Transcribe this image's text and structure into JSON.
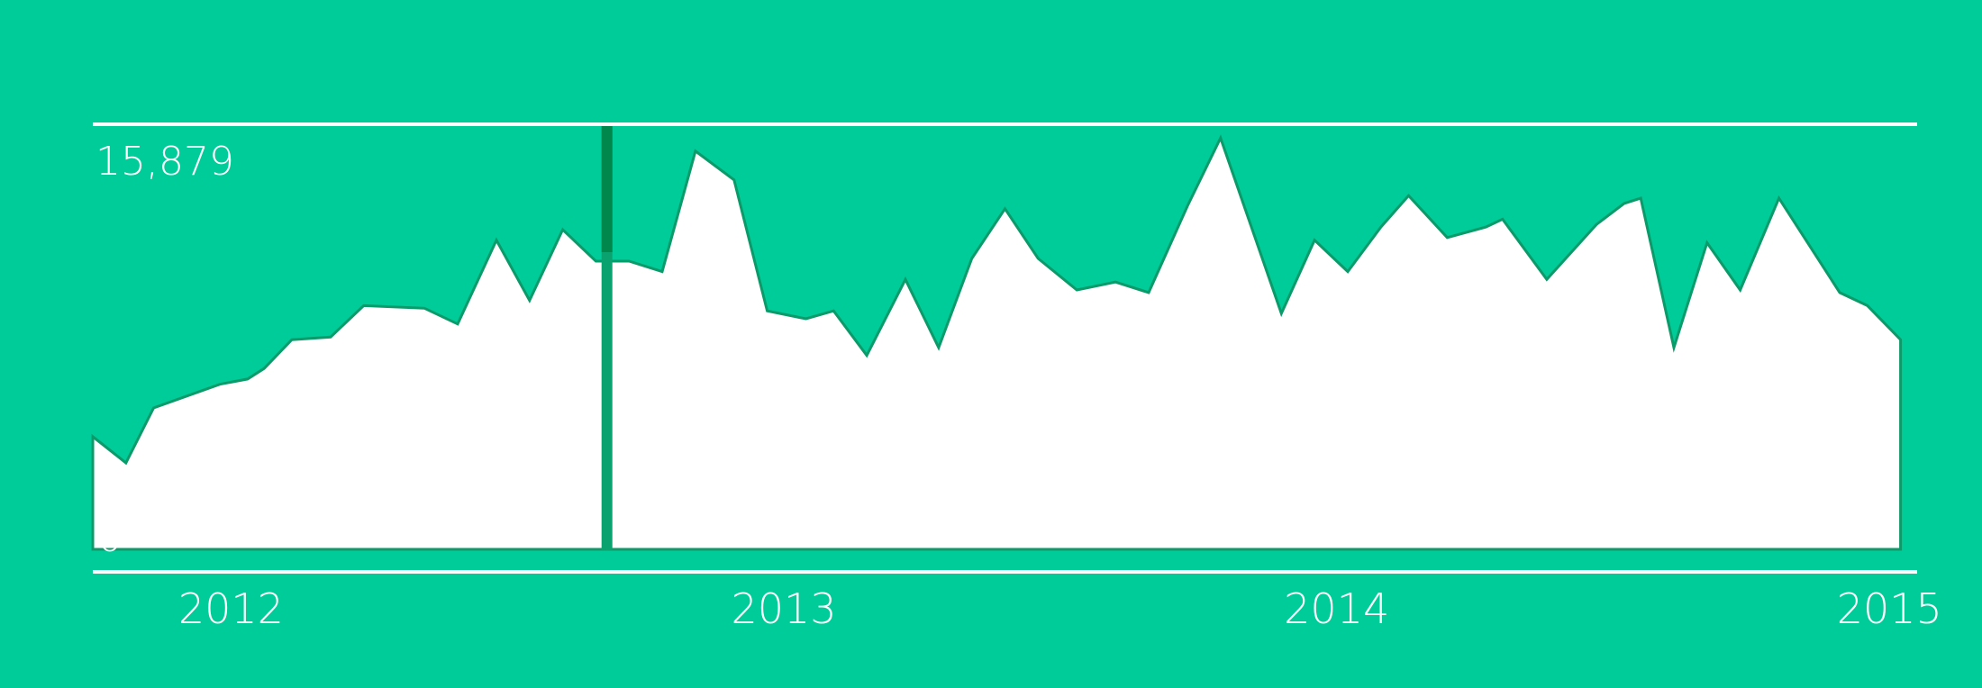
{
  "colors": {
    "background": "#00cc99",
    "area_fill": "#ffffff",
    "area_stroke": "#0b9a6a",
    "guide_line": "#ffffff",
    "marker_dark": "#00874b",
    "marker_light": "#0aa36f"
  },
  "chart_data": {
    "type": "area",
    "ylim": [
      0,
      15879
    ],
    "y_tick_labels": [
      "15,879",
      "0"
    ],
    "x_tick_labels": [
      "2012",
      "2013",
      "2014",
      "2015"
    ],
    "x_ticks": [
      2012.0,
      2013.0,
      2014.0,
      2015.0
    ],
    "xlim": [
      2011.75,
      2015.05
    ],
    "grid": false,
    "marker_x": 2012.68,
    "series": [
      {
        "x": [
          2011.75,
          2011.81,
          2011.86,
          2011.98,
          2012.03,
          2012.06,
          2012.11,
          2012.18,
          2012.24,
          2012.35,
          2012.41,
          2012.48,
          2012.54,
          2012.6,
          2012.66,
          2012.72,
          2012.78,
          2012.84,
          2012.91,
          2012.97,
          2013.04,
          2013.09,
          2013.15,
          2013.22,
          2013.28,
          2013.34,
          2013.4,
          2013.46,
          2013.53,
          2013.6,
          2013.66,
          2013.73,
          2013.79,
          2013.9,
          2013.96,
          2014.02,
          2014.08,
          2014.13,
          2014.2,
          2014.27,
          2014.3,
          2014.38,
          2014.47,
          2014.52,
          2014.55,
          2014.61,
          2014.67,
          2014.73,
          2014.8,
          2014.91,
          2014.96,
          2015.02
        ],
        "y": [
          4300,
          3300,
          5400,
          6300,
          6500,
          6900,
          8000,
          8100,
          9300,
          9200,
          8600,
          11800,
          9500,
          12200,
          11000,
          11000,
          10600,
          15200,
          14100,
          9100,
          8800,
          9100,
          7400,
          10300,
          7700,
          11100,
          13000,
          11100,
          9900,
          10200,
          9800,
          13100,
          15700,
          9000,
          11800,
          10600,
          12300,
          13500,
          11900,
          12300,
          12600,
          10300,
          12400,
          13200,
          13400,
          7700,
          11700,
          9900,
          13400,
          9800,
          9300,
          8000
        ]
      }
    ]
  }
}
